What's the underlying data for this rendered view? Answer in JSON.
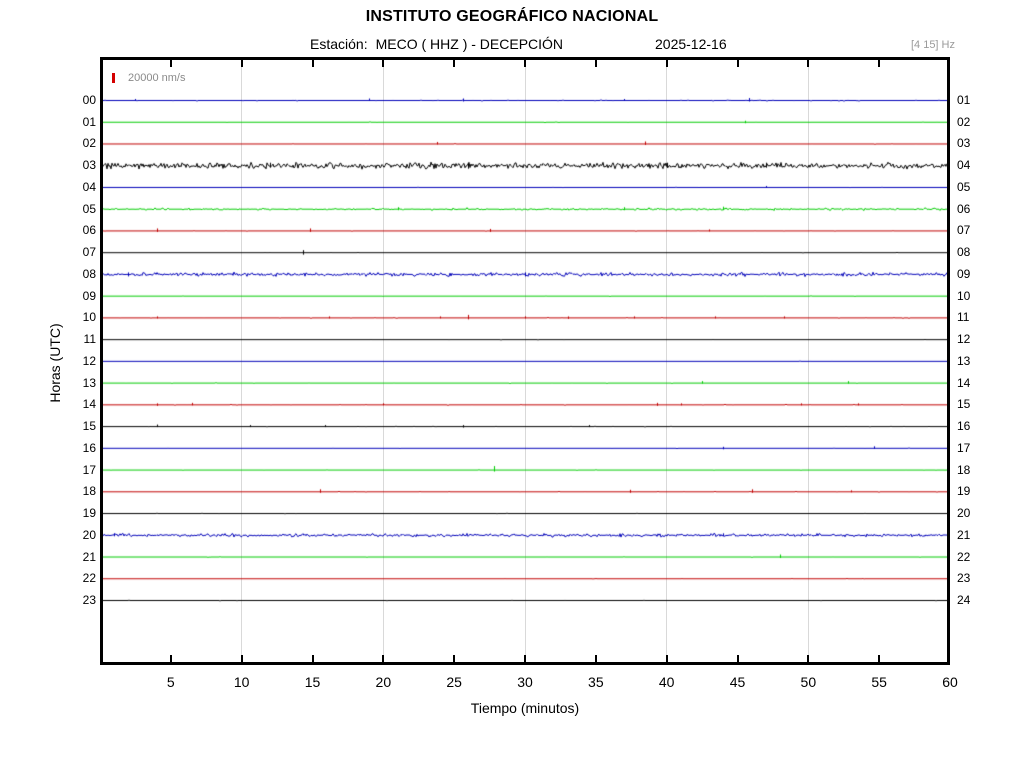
{
  "header": {
    "title": "INSTITUTO GEOGRÁFICO NACIONAL",
    "station_prefix": "Estación:",
    "station": "MECO ( HHZ ) - DECEPCIÓN",
    "date": "2025-12-16",
    "filter": "[4 15] Hz"
  },
  "legend": {
    "scale_label": "20000 nm/s",
    "bar_color": "#d40000"
  },
  "colors": {
    "blue": "#0000b8",
    "green": "#00cc00",
    "red": "#c00000",
    "black": "#000000",
    "grid": "#d9d9d9",
    "frame": "#000000",
    "muted_text": "#8a8a8a"
  },
  "chart_data": {
    "type": "line",
    "subtype": "helicorder-seismogram",
    "title": "INSTITUTO GEOGRÁFICO NACIONAL",
    "subtitle": "Estación: MECO ( HHZ ) - DECEPCIÓN 2025-12-16",
    "frequency_band_hz": "[4 15] Hz",
    "amplitude_scale": "20000 nm/s",
    "x": {
      "label": "Tiempo (minutos)",
      "min": 0,
      "max": 60,
      "ticks": [
        5,
        10,
        15,
        20,
        25,
        30,
        35,
        40,
        45,
        50,
        55,
        60
      ],
      "gridlines": [
        10,
        20,
        30,
        40,
        50
      ]
    },
    "y": {
      "label": "Horas (UTC)",
      "left_ticks": [
        "00",
        "01",
        "02",
        "03",
        "04",
        "05",
        "06",
        "07",
        "08",
        "09",
        "10",
        "11",
        "12",
        "13",
        "14",
        "15",
        "16",
        "17",
        "18",
        "19",
        "20",
        "21",
        "22",
        "23"
      ],
      "right_ticks": [
        "01",
        "02",
        "03",
        "04",
        "05",
        "06",
        "07",
        "08",
        "09",
        "10",
        "11",
        "12",
        "13",
        "14",
        "15",
        "16",
        "17",
        "18",
        "19",
        "20",
        "21",
        "22",
        "23",
        "24"
      ]
    },
    "color_cycle": [
      "blue",
      "green",
      "red",
      "black"
    ],
    "rows": [
      {
        "hour": "00",
        "right": "01",
        "color": "blue",
        "density": 0.05,
        "amp": 0.6,
        "spikes": [
          [
            2.5,
            1.5,
            0.5
          ],
          [
            19,
            2,
            0.5
          ],
          [
            25.6,
            2,
            1
          ],
          [
            37,
            1.5,
            0.5
          ],
          [
            45.8,
            2.5,
            1
          ]
        ]
      },
      {
        "hour": "01",
        "right": "02",
        "color": "green",
        "density": 0.01,
        "amp": 0.4,
        "spikes": [
          [
            45.5,
            1.5,
            1
          ]
        ]
      },
      {
        "hour": "02",
        "right": "03",
        "color": "red",
        "density": 0.01,
        "amp": 0.4,
        "spikes": [
          [
            23.8,
            2,
            0.5
          ],
          [
            38.5,
            2.5,
            1
          ]
        ]
      },
      {
        "hour": "03",
        "right": "04",
        "color": "black",
        "density": 0.9,
        "amp": 2.3,
        "spikes": [
          [
            12,
            3,
            2
          ],
          [
            26,
            3,
            3
          ],
          [
            40,
            3,
            2
          ],
          [
            47,
            3,
            2
          ]
        ]
      },
      {
        "hour": "04",
        "right": "05",
        "color": "blue",
        "density": 0.01,
        "amp": 0.3,
        "spikes": [
          [
            47,
            1.5,
            0.5
          ]
        ]
      },
      {
        "hour": "05",
        "right": "06",
        "color": "green",
        "density": 0.35,
        "amp": 1.0,
        "spikes": [
          [
            21,
            2,
            1
          ],
          [
            37,
            2,
            1
          ],
          [
            44,
            2.5,
            1
          ]
        ]
      },
      {
        "hour": "06",
        "right": "07",
        "color": "red",
        "density": 0.02,
        "amp": 0.4,
        "spikes": [
          [
            4,
            2.5,
            1
          ],
          [
            14.8,
            2.5,
            1
          ],
          [
            27.5,
            2,
            1
          ],
          [
            43,
            1.5,
            0.5
          ]
        ]
      },
      {
        "hour": "07",
        "right": "08",
        "color": "black",
        "density": 0.01,
        "amp": 0.3,
        "spikes": [
          [
            14.3,
            2.5,
            2
          ]
        ]
      },
      {
        "hour": "08",
        "right": "09",
        "color": "blue",
        "density": 0.65,
        "amp": 1.5,
        "spikes": [
          [
            2,
            2,
            2
          ],
          [
            30,
            2,
            2
          ]
        ]
      },
      {
        "hour": "09",
        "right": "10",
        "color": "green",
        "density": 0.01,
        "amp": 0.3,
        "spikes": []
      },
      {
        "hour": "10",
        "right": "11",
        "color": "red",
        "density": 0.02,
        "amp": 0.4,
        "spikes": [
          [
            4,
            1.5,
            0.5
          ],
          [
            16.2,
            1.5,
            0.5
          ],
          [
            24,
            1.5,
            0.5
          ],
          [
            26,
            3,
            1.5
          ],
          [
            30,
            1.5,
            0.5
          ],
          [
            33,
            1.5,
            1
          ],
          [
            37.7,
            1.5,
            0.5
          ],
          [
            43.4,
            1.5,
            0.5
          ],
          [
            48.3,
            1.5,
            0.5
          ]
        ]
      },
      {
        "hour": "11",
        "right": "12",
        "color": "black",
        "density": 0.01,
        "amp": 0.3,
        "spikes": []
      },
      {
        "hour": "12",
        "right": "13",
        "color": "blue",
        "density": 0.01,
        "amp": 0.3,
        "spikes": []
      },
      {
        "hour": "13",
        "right": "14",
        "color": "green",
        "density": 0.015,
        "amp": 0.4,
        "spikes": [
          [
            42.5,
            2,
            0.5
          ],
          [
            52.8,
            2,
            0.5
          ]
        ]
      },
      {
        "hour": "14",
        "right": "15",
        "color": "red",
        "density": 0.03,
        "amp": 0.5,
        "spikes": [
          [
            4,
            1.5,
            1
          ],
          [
            6.5,
            2,
            0.5
          ],
          [
            20,
            1.5,
            0.5
          ],
          [
            39.3,
            2,
            1
          ],
          [
            41,
            1.5,
            0.5
          ],
          [
            49.5,
            1.5,
            0.5
          ],
          [
            53.5,
            1.5,
            0.5
          ]
        ]
      },
      {
        "hour": "15",
        "right": "16",
        "color": "black",
        "density": 0.03,
        "amp": 0.5,
        "spikes": [
          [
            4,
            2,
            0.5
          ],
          [
            10.6,
            1.5,
            0.5
          ],
          [
            15.9,
            1.5,
            0.5
          ],
          [
            25.6,
            1.5,
            1
          ],
          [
            34.5,
            1.5,
            0.5
          ]
        ]
      },
      {
        "hour": "16",
        "right": "17",
        "color": "blue",
        "density": 0.01,
        "amp": 0.3,
        "spikes": [
          [
            44,
            1.5,
            1
          ],
          [
            54.6,
            2,
            0.5
          ]
        ]
      },
      {
        "hour": "17",
        "right": "18",
        "color": "green",
        "density": 0.015,
        "amp": 0.4,
        "spikes": [
          [
            27.8,
            4,
            1.5
          ]
        ]
      },
      {
        "hour": "18",
        "right": "19",
        "color": "red",
        "density": 0.02,
        "amp": 0.4,
        "spikes": [
          [
            15.5,
            2.5,
            1
          ],
          [
            37.4,
            2,
            1
          ],
          [
            46,
            2.5,
            1
          ],
          [
            53,
            1.5,
            0.5
          ]
        ]
      },
      {
        "hour": "19",
        "right": "20",
        "color": "black",
        "density": 0.01,
        "amp": 0.3,
        "spikes": []
      },
      {
        "hour": "20",
        "right": "21",
        "color": "blue",
        "density": 0.6,
        "amp": 1.3,
        "spikes": [
          [
            1,
            2,
            1
          ],
          [
            44,
            2,
            1
          ]
        ]
      },
      {
        "hour": "21",
        "right": "22",
        "color": "green",
        "density": 0.01,
        "amp": 0.3,
        "spikes": [
          [
            48,
            2.5,
            1
          ]
        ]
      },
      {
        "hour": "22",
        "right": "23",
        "color": "red",
        "density": 0.01,
        "amp": 0.3,
        "spikes": []
      },
      {
        "hour": "23",
        "right": "24",
        "color": "black",
        "density": 0.01,
        "amp": 0.3,
        "spikes": []
      }
    ]
  }
}
